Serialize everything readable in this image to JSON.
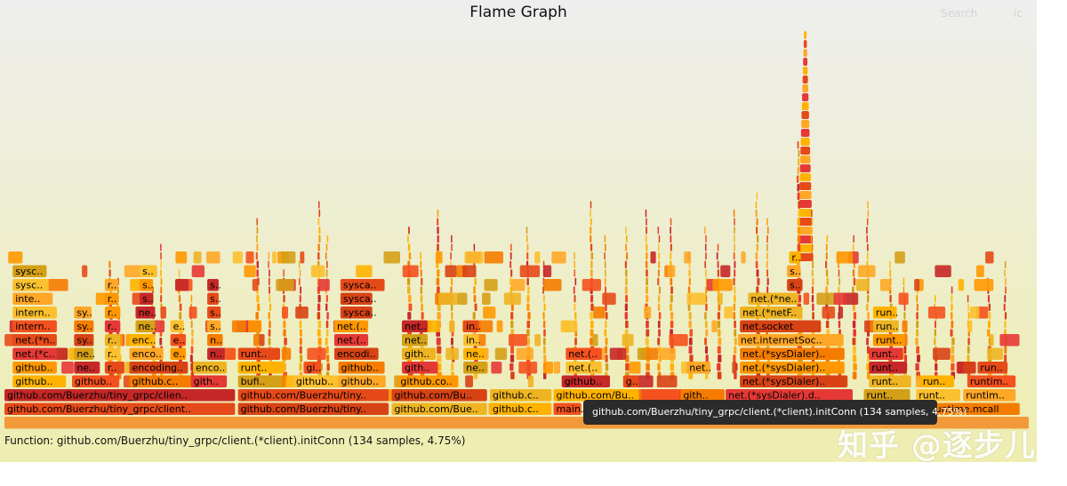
{
  "header": {
    "title": "Flame Graph",
    "search_label": "Search",
    "ic_label": "ic"
  },
  "details": {
    "text": "Function: github.com/Buerzhu/tiny_grpc/client.(*client).initConn (134 samples, 4.75%)"
  },
  "tooltip": {
    "text": "github.com/Buerzhu/tiny_grpc/client.(*client).initConn (134 samples, 4.75%)"
  },
  "watermark": {
    "text": "知乎 @逐步儿"
  },
  "colors": {
    "background_top": "#eeeeee",
    "background_bottom": "#eeeeb0",
    "frame_palette": [
      "#e64a19",
      "#f57c00",
      "#ff9800",
      "#ffb300",
      "#fbc02d",
      "#d84315",
      "#e53935",
      "#c62828",
      "#f4511e",
      "#ffa726",
      "#eeb422",
      "#d4a017"
    ],
    "tooltip_bg": "#2b2b2b"
  },
  "chart_data": {
    "type": "flame",
    "title": "Flame Graph",
    "total_samples_highlighted": 134,
    "highlighted_percent": 4.75,
    "frames": [
      {
        "label": "github.com/Buerzhu/tiny_grpc/client..",
        "start": 0.0,
        "width": 22.6,
        "depth": 0
      },
      {
        "label": "github.com/Buerzhu/tiny..",
        "start": 22.8,
        "width": 14.8,
        "depth": 0
      },
      {
        "label": "github.com/Bue..",
        "start": 37.8,
        "width": 9.4,
        "depth": 0
      },
      {
        "label": "github.c..",
        "start": 47.4,
        "width": 6.1,
        "depth": 0
      },
      {
        "label": "main..",
        "start": 53.6,
        "width": 2.8,
        "depth": 0
      },
      {
        "label": "runtime.mcall",
        "start": 90.2,
        "width": 9.0,
        "depth": 0
      },
      {
        "label": "github.com/Buerzhu/tiny_grpc/clien..",
        "start": 0.0,
        "width": 22.6,
        "depth": 1
      },
      {
        "label": "github.com/Buerzhu/tiny..",
        "start": 22.8,
        "width": 14.8,
        "depth": 1
      },
      {
        "label": "github.com/Bu..",
        "start": 37.8,
        "width": 9.4,
        "depth": 1
      },
      {
        "label": "github.c..",
        "start": 47.4,
        "width": 6.1,
        "depth": 1
      },
      {
        "label": "github.com/Bu..",
        "start": 53.6,
        "width": 8.4,
        "depth": 1
      },
      {
        "label": "",
        "start": 62.2,
        "width": 3.8,
        "depth": 1
      },
      {
        "label": "gith..",
        "start": 66.0,
        "width": 4.4,
        "depth": 1
      },
      {
        "label": "net.(*sysDialer).d..",
        "start": 70.4,
        "width": 12.5,
        "depth": 1
      },
      {
        "label": "runt..",
        "start": 83.9,
        "width": 4.6,
        "depth": 1
      },
      {
        "label": "runt..",
        "start": 89.0,
        "width": 4.4,
        "depth": 1
      },
      {
        "label": "runtim..",
        "start": 93.6,
        "width": 5.2,
        "depth": 1
      },
      {
        "label": "github..",
        "start": 0.8,
        "width": 5.3,
        "depth": 2
      },
      {
        "label": "github..",
        "start": 6.6,
        "width": 4.7,
        "depth": 2
      },
      {
        "label": "github.c..",
        "start": 12.2,
        "width": 6.6,
        "depth": 2
      },
      {
        "label": "gith..",
        "start": 18.2,
        "width": 3.6,
        "depth": 2
      },
      {
        "label": "bufi..",
        "start": 22.8,
        "width": 4.4,
        "depth": 2
      },
      {
        "label": "github..",
        "start": 28.2,
        "width": 4.6,
        "depth": 2
      },
      {
        "label": "github..",
        "start": 32.6,
        "width": 4.7,
        "depth": 2
      },
      {
        "label": "github.co..",
        "start": 38.4,
        "width": 6.0,
        "depth": 2
      },
      {
        "label": "github..",
        "start": 54.4,
        "width": 4.8,
        "depth": 2
      },
      {
        "label": "g..",
        "start": 60.4,
        "width": 1.6,
        "depth": 2
      },
      {
        "label": "net.(*sysDialer)..",
        "start": 71.8,
        "width": 10.3,
        "depth": 2
      },
      {
        "label": "runt..",
        "start": 84.4,
        "width": 4.2,
        "depth": 2
      },
      {
        "label": "run..",
        "start": 89.4,
        "width": 3.4,
        "depth": 2
      },
      {
        "label": "runtim..",
        "start": 94.0,
        "width": 4.8,
        "depth": 2
      },
      {
        "label": "github..",
        "start": 0.8,
        "width": 4.4,
        "depth": 3
      },
      {
        "label": "ne..",
        "start": 6.8,
        "width": 2.6,
        "depth": 3
      },
      {
        "label": "r..",
        "start": 9.8,
        "width": 2.0,
        "depth": 3
      },
      {
        "label": "encoding..",
        "start": 12.2,
        "width": 5.8,
        "depth": 3
      },
      {
        "label": "enco..",
        "start": 18.4,
        "width": 3.4,
        "depth": 3
      },
      {
        "label": "runt..",
        "start": 22.8,
        "width": 4.6,
        "depth": 3
      },
      {
        "label": "gi..",
        "start": 29.2,
        "width": 1.8,
        "depth": 3
      },
      {
        "label": "github..",
        "start": 32.6,
        "width": 4.6,
        "depth": 3
      },
      {
        "label": "gith..",
        "start": 38.8,
        "width": 3.6,
        "depth": 3
      },
      {
        "label": "ne..",
        "start": 44.8,
        "width": 2.4,
        "depth": 3
      },
      {
        "label": "net.(..",
        "start": 54.8,
        "width": 3.6,
        "depth": 3
      },
      {
        "label": "net..",
        "start": 66.6,
        "width": 2.4,
        "depth": 3
      },
      {
        "label": "net.(*sysDialer)..",
        "start": 71.8,
        "width": 10.3,
        "depth": 3
      },
      {
        "label": "runt..",
        "start": 84.4,
        "width": 3.8,
        "depth": 3
      },
      {
        "label": "run..",
        "start": 95.0,
        "width": 3.0,
        "depth": 3
      },
      {
        "label": "net.(*c..",
        "start": 0.8,
        "width": 4.4,
        "depth": 4
      },
      {
        "label": "ne..",
        "start": 6.8,
        "width": 2.0,
        "depth": 4
      },
      {
        "label": "r..",
        "start": 9.8,
        "width": 1.6,
        "depth": 4
      },
      {
        "label": "enco..",
        "start": 12.2,
        "width": 3.4,
        "depth": 4
      },
      {
        "label": "e..",
        "start": 16.2,
        "width": 1.6,
        "depth": 4
      },
      {
        "label": "n..",
        "start": 19.8,
        "width": 1.8,
        "depth": 4
      },
      {
        "label": "runt..",
        "start": 22.8,
        "width": 4.2,
        "depth": 4
      },
      {
        "label": "encodi..",
        "start": 32.2,
        "width": 4.4,
        "depth": 4
      },
      {
        "label": "gith..",
        "start": 38.8,
        "width": 3.4,
        "depth": 4
      },
      {
        "label": "ne..",
        "start": 44.8,
        "width": 2.2,
        "depth": 4
      },
      {
        "label": "net.(..",
        "start": 54.8,
        "width": 3.6,
        "depth": 4
      },
      {
        "label": "net.(*sysDialer)..",
        "start": 71.8,
        "width": 10.3,
        "depth": 4
      },
      {
        "label": "runt..",
        "start": 84.4,
        "width": 3.4,
        "depth": 4
      },
      {
        "label": "net.(*n..",
        "start": 0.8,
        "width": 4.4,
        "depth": 5
      },
      {
        "label": "sy..",
        "start": 6.8,
        "width": 2.0,
        "depth": 5
      },
      {
        "label": "r..",
        "start": 9.8,
        "width": 1.6,
        "depth": 5
      },
      {
        "label": "enc..",
        "start": 12.2,
        "width": 2.6,
        "depth": 5
      },
      {
        "label": "e..",
        "start": 16.2,
        "width": 1.6,
        "depth": 5
      },
      {
        "label": "n..",
        "start": 19.8,
        "width": 1.6,
        "depth": 5
      },
      {
        "label": "net.(..",
        "start": 32.2,
        "width": 3.4,
        "depth": 5
      },
      {
        "label": "net..",
        "start": 38.8,
        "width": 2.6,
        "depth": 5
      },
      {
        "label": "in..",
        "start": 44.8,
        "width": 1.6,
        "depth": 5
      },
      {
        "label": "net.internetSoc..",
        "start": 71.6,
        "width": 10.4,
        "depth": 5
      },
      {
        "label": "runt..",
        "start": 84.8,
        "width": 3.2,
        "depth": 5
      },
      {
        "label": "intern..",
        "start": 0.8,
        "width": 4.4,
        "depth": 6
      },
      {
        "label": "sy..",
        "start": 6.8,
        "width": 2.0,
        "depth": 6
      },
      {
        "label": "r..",
        "start": 9.8,
        "width": 1.6,
        "depth": 6
      },
      {
        "label": "ne..",
        "start": 12.8,
        "width": 2.0,
        "depth": 6
      },
      {
        "label": "e..",
        "start": 16.2,
        "width": 1.4,
        "depth": 6
      },
      {
        "label": "s..",
        "start": 19.8,
        "width": 1.4,
        "depth": 6
      },
      {
        "label": "net.(..",
        "start": 32.2,
        "width": 3.4,
        "depth": 6
      },
      {
        "label": "net..",
        "start": 38.8,
        "width": 2.6,
        "depth": 6
      },
      {
        "label": "in..",
        "start": 44.8,
        "width": 1.6,
        "depth": 6
      },
      {
        "label": "net.socket",
        "start": 71.8,
        "width": 8.0,
        "depth": 6
      },
      {
        "label": "run..",
        "start": 84.8,
        "width": 2.6,
        "depth": 6
      },
      {
        "label": "intern..",
        "start": 0.8,
        "width": 4.4,
        "depth": 7
      },
      {
        "label": "sy..",
        "start": 6.8,
        "width": 1.8,
        "depth": 7
      },
      {
        "label": "r..",
        "start": 9.8,
        "width": 1.6,
        "depth": 7
      },
      {
        "label": "ne..",
        "start": 12.8,
        "width": 2.0,
        "depth": 7
      },
      {
        "label": "s..",
        "start": 19.8,
        "width": 1.4,
        "depth": 7
      },
      {
        "label": "sysca..",
        "start": 32.8,
        "width": 3.2,
        "depth": 7
      },
      {
        "label": "net.(*netF..",
        "start": 71.8,
        "width": 6.2,
        "depth": 7
      },
      {
        "label": "run..",
        "start": 84.8,
        "width": 2.4,
        "depth": 7
      },
      {
        "label": "inte..",
        "start": 0.8,
        "width": 4.0,
        "depth": 8
      },
      {
        "label": "r..",
        "start": 9.8,
        "width": 1.4,
        "depth": 8
      },
      {
        "label": "s..",
        "start": 13.2,
        "width": 1.4,
        "depth": 8
      },
      {
        "label": "s..",
        "start": 19.8,
        "width": 1.2,
        "depth": 8
      },
      {
        "label": "sysca..",
        "start": 32.8,
        "width": 3.2,
        "depth": 8
      },
      {
        "label": "net.(*ne..",
        "start": 72.6,
        "width": 5.0,
        "depth": 8
      },
      {
        "label": "sysc..",
        "start": 0.8,
        "width": 3.6,
        "depth": 9
      },
      {
        "label": "r..",
        "start": 9.8,
        "width": 1.4,
        "depth": 9
      },
      {
        "label": "s..",
        "start": 13.2,
        "width": 1.4,
        "depth": 9
      },
      {
        "label": "s..",
        "start": 19.8,
        "width": 1.2,
        "depth": 9
      },
      {
        "label": "sysca..",
        "start": 32.8,
        "width": 4.4,
        "depth": 9
      },
      {
        "label": "s..",
        "start": 76.4,
        "width": 1.6,
        "depth": 9
      },
      {
        "label": "sysc..",
        "start": 0.8,
        "width": 3.4,
        "depth": 10
      },
      {
        "label": "s..",
        "start": 13.2,
        "width": 1.8,
        "depth": 10
      },
      {
        "label": "s..",
        "start": 76.4,
        "width": 1.4,
        "depth": 10
      },
      {
        "label": "r..",
        "start": 76.6,
        "width": 1.2,
        "depth": 11
      }
    ],
    "spikes": [
      {
        "start": 10.2,
        "width": 0.5,
        "height": 14
      },
      {
        "start": 11.0,
        "width": 0.4,
        "height": 12
      },
      {
        "start": 14.4,
        "width": 0.4,
        "height": 11
      },
      {
        "start": 15.2,
        "width": 0.3,
        "height": 16
      },
      {
        "start": 17.0,
        "width": 0.4,
        "height": 13
      },
      {
        "start": 18.2,
        "width": 0.3,
        "height": 10
      },
      {
        "start": 24.6,
        "width": 0.4,
        "height": 19
      },
      {
        "start": 25.8,
        "width": 0.3,
        "height": 15
      },
      {
        "start": 27.2,
        "width": 0.4,
        "height": 13
      },
      {
        "start": 28.8,
        "width": 0.3,
        "height": 15
      },
      {
        "start": 30.6,
        "width": 0.4,
        "height": 21
      },
      {
        "start": 31.4,
        "width": 0.3,
        "height": 17
      },
      {
        "start": 39.4,
        "width": 0.5,
        "height": 18
      },
      {
        "start": 40.6,
        "width": 0.4,
        "height": 15
      },
      {
        "start": 42.2,
        "width": 0.5,
        "height": 20
      },
      {
        "start": 43.6,
        "width": 0.3,
        "height": 17
      },
      {
        "start": 45.8,
        "width": 0.4,
        "height": 16
      },
      {
        "start": 49.4,
        "width": 0.4,
        "height": 16
      },
      {
        "start": 51.0,
        "width": 0.4,
        "height": 18
      },
      {
        "start": 52.6,
        "width": 0.3,
        "height": 14
      },
      {
        "start": 55.6,
        "width": 0.3,
        "height": 15
      },
      {
        "start": 57.2,
        "width": 0.4,
        "height": 21
      },
      {
        "start": 58.6,
        "width": 0.3,
        "height": 17
      },
      {
        "start": 60.6,
        "width": 0.4,
        "height": 18
      },
      {
        "start": 62.6,
        "width": 0.4,
        "height": 20
      },
      {
        "start": 63.8,
        "width": 0.3,
        "height": 18
      },
      {
        "start": 65.0,
        "width": 0.4,
        "height": 19
      },
      {
        "start": 66.8,
        "width": 0.4,
        "height": 15
      },
      {
        "start": 68.4,
        "width": 0.3,
        "height": 18
      },
      {
        "start": 69.6,
        "width": 0.4,
        "height": 16
      },
      {
        "start": 71.2,
        "width": 0.3,
        "height": 20
      },
      {
        "start": 73.4,
        "width": 0.4,
        "height": 22
      },
      {
        "start": 74.4,
        "width": 0.3,
        "height": 19
      },
      {
        "start": 77.4,
        "width": 0.5,
        "height": 28
      },
      {
        "start": 78.8,
        "width": 0.3,
        "height": 20
      },
      {
        "start": 80.2,
        "width": 0.4,
        "height": 17
      },
      {
        "start": 81.4,
        "width": 0.3,
        "height": 15
      },
      {
        "start": 82.8,
        "width": 0.4,
        "height": 17
      },
      {
        "start": 84.2,
        "width": 0.3,
        "height": 21
      },
      {
        "start": 86.4,
        "width": 0.4,
        "height": 14
      },
      {
        "start": 87.8,
        "width": 0.3,
        "height": 12
      },
      {
        "start": 89.0,
        "width": 0.4,
        "height": 11
      },
      {
        "start": 90.8,
        "width": 0.3,
        "height": 10
      },
      {
        "start": 92.4,
        "width": 0.4,
        "height": 11
      },
      {
        "start": 94.0,
        "width": 0.3,
        "height": 10
      },
      {
        "start": 96.0,
        "width": 0.4,
        "height": 12
      },
      {
        "start": 97.6,
        "width": 0.3,
        "height": 14
      }
    ]
  }
}
